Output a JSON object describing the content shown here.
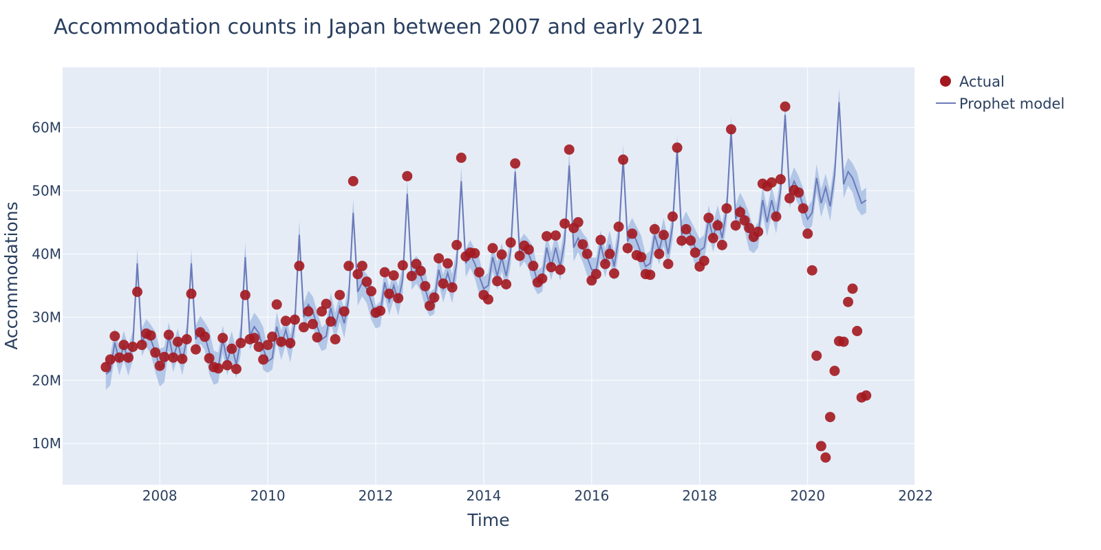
{
  "chart_data": {
    "type": "scatter",
    "title": "Accommodation counts in Japan between 2007 and early 2021",
    "xlabel": "Time",
    "ylabel": "Accommodations",
    "xlim": [
      2006.2,
      2021.98
    ],
    "ylim": [
      3.5,
      69.5
    ],
    "x_tick_values": [
      2008,
      2010,
      2012,
      2014,
      2016,
      2018,
      2020,
      2022
    ],
    "x_tick_labels": [
      "2008",
      "2010",
      "2012",
      "2014",
      "2016",
      "2018",
      "2020",
      "2022"
    ],
    "y_tick_values": [
      10,
      20,
      30,
      40,
      50,
      60
    ],
    "y_tick_labels": [
      "10M",
      "20M",
      "30M",
      "40M",
      "50M",
      "60M"
    ],
    "grid": true,
    "legend_position": "top-right",
    "colors": {
      "actual": "#a3181f",
      "model_line": "#6b7ab8",
      "band": "#a9bfe4",
      "plot_bg": "#e5ecf6",
      "text": "#2a3f5f"
    },
    "x_start_year": 2007,
    "x_step": "monthly",
    "series": [
      {
        "name": "Actual",
        "kind": "markers",
        "values": [
          22.1,
          23.3,
          27.0,
          23.6,
          25.6,
          23.6,
          25.3,
          34.0,
          25.6,
          27.4,
          27.1,
          24.4,
          22.3,
          23.7,
          27.2,
          23.6,
          26.1,
          23.4,
          26.5,
          33.7,
          24.9,
          27.6,
          26.9,
          23.5,
          22.1,
          21.9,
          26.7,
          22.4,
          25.0,
          21.8,
          25.9,
          33.5,
          26.5,
          26.7,
          25.3,
          23.3,
          25.6,
          26.9,
          32.0,
          26.1,
          29.4,
          25.9,
          29.6,
          38.1,
          28.4,
          30.9,
          28.9,
          26.8,
          30.9,
          32.1,
          29.3,
          26.5,
          33.5,
          30.9,
          38.1,
          51.5,
          36.8,
          38.1,
          35.6,
          34.1,
          30.7,
          31.0,
          37.1,
          33.7,
          36.6,
          33.0,
          38.2,
          52.3,
          36.5,
          38.4,
          37.3,
          34.9,
          31.8,
          33.1,
          39.3,
          35.3,
          38.5,
          34.7,
          41.4,
          55.2,
          39.6,
          40.2,
          40.1,
          37.1,
          33.5,
          32.8,
          40.9,
          35.7,
          39.9,
          35.2,
          41.8,
          54.3,
          39.7,
          41.3,
          40.7,
          38.1,
          35.5,
          36.1,
          42.8,
          37.9,
          42.9,
          37.5,
          44.8,
          56.5,
          44.1,
          45.0,
          41.5,
          40.0,
          35.8,
          36.8,
          42.2,
          38.4,
          40.0,
          36.9,
          44.3,
          54.9,
          40.9,
          43.2,
          39.8,
          39.5,
          36.8,
          36.7,
          43.9,
          40.0,
          43.0,
          38.4,
          45.9,
          56.8,
          42.1,
          43.9,
          42.1,
          40.2,
          38.0,
          38.9,
          45.7,
          42.5,
          44.5,
          41.4,
          47.2,
          59.7,
          44.5,
          46.6,
          45.3,
          44.1,
          42.7,
          43.5,
          51.1,
          50.7,
          51.3,
          45.9,
          51.8,
          63.3,
          48.8,
          50.1,
          49.7,
          47.2,
          43.2,
          37.4,
          23.9,
          9.6,
          7.8,
          14.2,
          21.5,
          26.2,
          26.1,
          32.4,
          34.5,
          27.8,
          17.3,
          17.6
        ]
      },
      {
        "name": "Prophet model",
        "kind": "line",
        "values": [
          21.0,
          21.5,
          26.0,
          23.0,
          25.5,
          23.0,
          25.5,
          38.5,
          26.0,
          27.5,
          26.5,
          24.5,
          22.0,
          22.5,
          27.0,
          23.5,
          26.0,
          23.0,
          26.5,
          38.5,
          26.5,
          28.0,
          27.0,
          24.5,
          22.0,
          22.0,
          26.5,
          23.0,
          25.5,
          22.5,
          26.5,
          39.5,
          27.0,
          28.5,
          27.5,
          25.0,
          23.0,
          23.5,
          28.5,
          25.5,
          28.0,
          25.0,
          29.0,
          43.0,
          30.0,
          32.0,
          31.0,
          28.5,
          26.5,
          27.0,
          31.5,
          28.5,
          31.5,
          29.0,
          33.0,
          46.5,
          34.0,
          35.5,
          34.5,
          32.5,
          30.0,
          30.5,
          35.5,
          32.5,
          35.0,
          32.5,
          36.0,
          49.5,
          36.5,
          37.5,
          36.5,
          34.5,
          32.0,
          32.5,
          37.5,
          34.5,
          37.0,
          34.5,
          38.5,
          51.5,
          38.5,
          40.0,
          38.5,
          36.5,
          34.5,
          35.0,
          39.5,
          36.5,
          39.5,
          36.5,
          40.5,
          53.0,
          40.0,
          41.0,
          40.0,
          38.0,
          35.5,
          36.0,
          41.0,
          38.0,
          41.0,
          38.0,
          42.0,
          54.0,
          41.0,
          42.5,
          41.0,
          39.5,
          37.5,
          37.5,
          41.5,
          38.5,
          41.5,
          38.0,
          42.5,
          55.0,
          42.0,
          43.5,
          42.0,
          40.0,
          38.0,
          38.5,
          43.0,
          40.5,
          43.5,
          40.0,
          44.5,
          56.5,
          43.0,
          44.5,
          43.0,
          41.0,
          40.5,
          41.0,
          45.5,
          42.5,
          45.5,
          42.5,
          47.0,
          59.5,
          45.5,
          47.5,
          46.0,
          43.5,
          42.0,
          43.0,
          48.5,
          45.0,
          48.5,
          45.5,
          50.0,
          62.0,
          49.5,
          51.5,
          50.0,
          47.5,
          45.5,
          46.5,
          52.0,
          48.0,
          50.5,
          47.5,
          52.5,
          64.0,
          51.0,
          53.0,
          52.0,
          50.0,
          48.0,
          48.5
        ],
        "lower": [
          18.5,
          19.2,
          23.8,
          20.8,
          23.2,
          20.7,
          23.2,
          36.2,
          23.8,
          25.3,
          24.2,
          21.3,
          19.0,
          19.7,
          24.8,
          21.3,
          23.8,
          20.8,
          24.2,
          36.3,
          24.3,
          25.8,
          24.8,
          21.0,
          19.3,
          19.6,
          24.3,
          20.8,
          23.2,
          20.3,
          24.2,
          37.2,
          24.8,
          26.3,
          25.2,
          21.6,
          21.2,
          21.7,
          26.2,
          23.2,
          25.7,
          22.8,
          26.8,
          40.8,
          27.8,
          29.8,
          28.7,
          26.1,
          24.6,
          25.0,
          29.2,
          26.3,
          29.3,
          26.7,
          30.8,
          44.3,
          31.8,
          33.3,
          32.2,
          29.6,
          28.2,
          28.5,
          33.3,
          30.3,
          32.8,
          30.2,
          33.8,
          47.3,
          34.3,
          35.3,
          34.2,
          31.6,
          30.1,
          30.5,
          35.3,
          32.3,
          34.8,
          32.2,
          36.3,
          49.3,
          36.3,
          37.8,
          36.2,
          33.6,
          32.6,
          33.0,
          37.3,
          34.3,
          37.3,
          34.2,
          38.3,
          50.8,
          37.8,
          38.8,
          37.7,
          34.9,
          33.6,
          34.0,
          38.8,
          35.8,
          38.8,
          35.7,
          39.8,
          51.8,
          38.8,
          40.3,
          38.7,
          36.6,
          35.6,
          35.6,
          39.3,
          36.3,
          39.3,
          35.7,
          40.3,
          52.8,
          39.8,
          41.3,
          39.7,
          37.1,
          36.1,
          36.5,
          40.8,
          38.3,
          41.3,
          37.7,
          42.3,
          54.3,
          40.8,
          42.3,
          40.7,
          38.1,
          38.6,
          39.0,
          43.3,
          40.3,
          43.3,
          40.2,
          44.8,
          57.3,
          43.3,
          45.3,
          43.7,
          40.6,
          40.1,
          41.0,
          46.3,
          42.8,
          46.3,
          43.2,
          47.8,
          59.8,
          47.3,
          49.3,
          47.7,
          44.6,
          43.6,
          44.5,
          49.8,
          45.8,
          48.3,
          45.2,
          50.3,
          61.8,
          48.8,
          50.8,
          49.7,
          47.1,
          46.1,
          46.5
        ],
        "upper": [
          23.5,
          23.8,
          28.2,
          25.2,
          27.8,
          25.3,
          27.8,
          40.8,
          28.2,
          29.7,
          28.8,
          27.7,
          25.0,
          25.3,
          29.2,
          25.7,
          28.2,
          25.2,
          28.8,
          40.7,
          28.7,
          30.2,
          29.2,
          28.0,
          24.7,
          24.4,
          28.7,
          25.2,
          27.8,
          24.7,
          28.8,
          41.8,
          29.2,
          30.7,
          29.8,
          28.4,
          24.8,
          25.3,
          30.8,
          27.8,
          30.3,
          27.2,
          31.2,
          45.2,
          32.2,
          34.2,
          33.3,
          30.9,
          28.4,
          29.0,
          33.8,
          30.7,
          33.7,
          31.3,
          35.2,
          48.7,
          36.2,
          37.7,
          36.8,
          35.4,
          31.8,
          32.5,
          37.7,
          34.7,
          37.2,
          34.8,
          38.2,
          51.7,
          38.7,
          39.7,
          38.8,
          37.4,
          33.9,
          34.5,
          39.7,
          36.7,
          39.2,
          36.8,
          40.7,
          53.7,
          40.7,
          42.2,
          40.8,
          39.4,
          36.4,
          37.0,
          41.7,
          38.7,
          41.7,
          38.8,
          42.7,
          55.2,
          42.2,
          43.2,
          42.3,
          41.1,
          37.4,
          38.0,
          43.2,
          40.2,
          43.2,
          40.3,
          44.2,
          56.2,
          43.2,
          44.7,
          43.3,
          42.4,
          39.4,
          39.4,
          43.7,
          40.7,
          43.7,
          40.3,
          44.7,
          57.2,
          44.2,
          45.7,
          44.3,
          42.9,
          39.9,
          40.5,
          45.2,
          42.7,
          45.7,
          42.3,
          46.7,
          58.7,
          45.2,
          46.7,
          45.3,
          43.9,
          42.4,
          43.0,
          47.7,
          44.7,
          47.7,
          44.8,
          49.2,
          61.7,
          47.7,
          49.7,
          48.3,
          46.4,
          43.9,
          45.0,
          50.7,
          47.2,
          50.7,
          47.8,
          52.2,
          64.2,
          51.7,
          53.7,
          52.3,
          50.4,
          47.4,
          48.5,
          54.2,
          50.2,
          52.7,
          49.8,
          54.7,
          66.2,
          53.2,
          55.2,
          54.3,
          52.9,
          49.9,
          50.5
        ]
      }
    ]
  },
  "legend": [
    {
      "label": "Actual"
    },
    {
      "label": "Prophet model"
    }
  ]
}
